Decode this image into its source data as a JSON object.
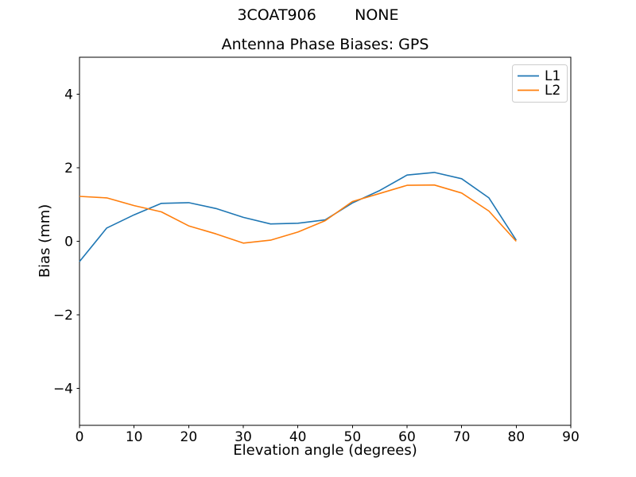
{
  "chart_data": {
    "type": "line",
    "suptitle": "3COAT906        NONE",
    "title": "Antenna Phase Biases: GPS",
    "xlabel": "Elevation angle (degrees)",
    "ylabel": "Bias (mm)",
    "xlim": [
      0,
      90
    ],
    "ylim": [
      -5,
      5
    ],
    "x_ticks": [
      0,
      10,
      20,
      30,
      40,
      50,
      60,
      70,
      80,
      90
    ],
    "y_ticks": [
      -4,
      -2,
      0,
      2,
      4
    ],
    "grid": false,
    "legend_position": "upper right",
    "background_color": "#ffffff",
    "x": [
      0,
      5,
      10,
      15,
      20,
      25,
      30,
      35,
      40,
      45,
      50,
      55,
      60,
      65,
      70,
      75,
      80
    ],
    "series": [
      {
        "name": "L1",
        "color": "#1f77b4",
        "values": [
          -0.55,
          0.36,
          0.72,
          1.03,
          1.05,
          0.89,
          0.65,
          0.47,
          0.49,
          0.58,
          1.04,
          1.38,
          1.8,
          1.87,
          1.7,
          1.18,
          0.03
        ]
      },
      {
        "name": "L2",
        "color": "#ff7f0e",
        "values": [
          1.22,
          1.18,
          0.97,
          0.8,
          0.42,
          0.2,
          -0.05,
          0.03,
          0.25,
          0.56,
          1.08,
          1.3,
          1.52,
          1.53,
          1.31,
          0.82,
          0.0
        ]
      }
    ]
  }
}
